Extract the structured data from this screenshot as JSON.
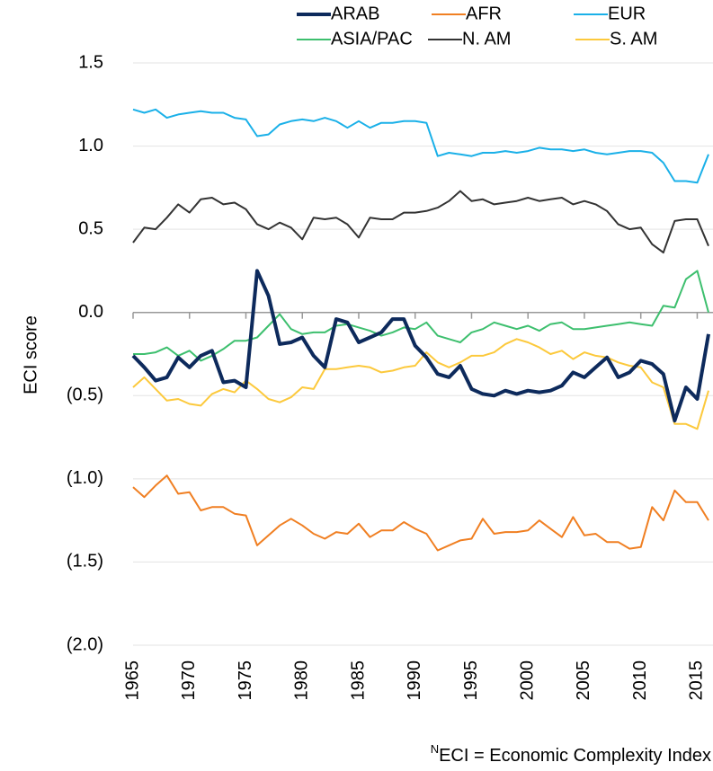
{
  "chart_data": {
    "type": "line",
    "y_label": "ECI score",
    "footnote_superscript": "N",
    "footnote": "ECI = Economic Complexity Index",
    "x": [
      1965,
      1966,
      1967,
      1968,
      1969,
      1970,
      1971,
      1972,
      1973,
      1974,
      1975,
      1976,
      1977,
      1978,
      1979,
      1980,
      1981,
      1982,
      1983,
      1984,
      1985,
      1986,
      1987,
      1988,
      1989,
      1990,
      1991,
      1992,
      1993,
      1994,
      1995,
      1996,
      1997,
      1998,
      1999,
      2000,
      2001,
      2002,
      2003,
      2004,
      2005,
      2006,
      2007,
      2008,
      2009,
      2010,
      2011,
      2012,
      2013,
      2014,
      2015,
      2016
    ],
    "xlim": [
      1965,
      2016
    ],
    "xticks": [
      1965,
      1970,
      1975,
      1980,
      1985,
      1990,
      1995,
      2000,
      2005,
      2010,
      2015
    ],
    "ylim": [
      -2,
      1.5
    ],
    "yticks": [
      {
        "value": -2,
        "label": "(2.0)"
      },
      {
        "value": -1.5,
        "label": "(1.5)"
      },
      {
        "value": -1,
        "label": "(1.0)"
      },
      {
        "value": -0.5,
        "label": "(0.5)"
      },
      {
        "value": 0,
        "label": "0.0"
      },
      0.5,
      {
        "value": 1,
        "label": "1.0"
      },
      1.5
    ],
    "grid": true,
    "legend": "top",
    "series": [
      {
        "name": "ARAB",
        "color": "#0d2a5c",
        "values": [
          -0.26,
          -0.33,
          -0.41,
          -0.39,
          -0.27,
          -0.33,
          -0.26,
          -0.23,
          -0.42,
          -0.41,
          -0.45,
          0.25,
          0.1,
          -0.19,
          -0.18,
          -0.15,
          -0.26,
          -0.33,
          -0.04,
          -0.06,
          -0.18,
          -0.15,
          -0.12,
          -0.04,
          -0.04,
          -0.2,
          -0.27,
          -0.37,
          -0.39,
          -0.32,
          -0.46,
          -0.49,
          -0.5,
          -0.47,
          -0.49,
          -0.47,
          -0.48,
          -0.47,
          -0.44,
          -0.36,
          -0.39,
          -0.33,
          -0.27,
          -0.39,
          -0.36,
          -0.29,
          -0.31,
          -0.37,
          -0.65,
          -0.45,
          -0.52,
          -0.13
        ]
      },
      {
        "name": "AFR",
        "color": "#f07f22",
        "values": [
          -1.05,
          -1.11,
          -1.04,
          -0.98,
          -1.09,
          -1.08,
          -1.19,
          -1.17,
          -1.17,
          -1.21,
          -1.22,
          -1.4,
          -1.34,
          -1.28,
          -1.24,
          -1.28,
          -1.33,
          -1.36,
          -1.32,
          -1.33,
          -1.27,
          -1.35,
          -1.31,
          -1.31,
          -1.26,
          -1.3,
          -1.33,
          -1.43,
          -1.4,
          -1.37,
          -1.36,
          -1.24,
          -1.33,
          -1.32,
          -1.32,
          -1.31,
          -1.25,
          -1.3,
          -1.35,
          -1.23,
          -1.34,
          -1.33,
          -1.38,
          -1.38,
          -1.42,
          -1.41,
          -1.17,
          -1.25,
          -1.07,
          -1.14,
          -1.14,
          -1.25
        ]
      },
      {
        "name": "EUR",
        "color": "#1ab0e8",
        "values": [
          1.22,
          1.2,
          1.22,
          1.17,
          1.19,
          1.2,
          1.21,
          1.2,
          1.2,
          1.17,
          1.16,
          1.06,
          1.07,
          1.13,
          1.15,
          1.16,
          1.15,
          1.17,
          1.15,
          1.11,
          1.15,
          1.11,
          1.14,
          1.14,
          1.15,
          1.15,
          1.14,
          0.94,
          0.96,
          0.95,
          0.94,
          0.96,
          0.96,
          0.97,
          0.96,
          0.97,
          0.99,
          0.98,
          0.98,
          0.97,
          0.98,
          0.96,
          0.95,
          0.96,
          0.97,
          0.97,
          0.96,
          0.9,
          0.79,
          0.79,
          0.78,
          0.95
        ]
      },
      {
        "name": "ASIA/PAC",
        "color": "#3dbf6e",
        "values": [
          -0.25,
          -0.25,
          -0.24,
          -0.21,
          -0.26,
          -0.23,
          -0.29,
          -0.26,
          -0.22,
          -0.17,
          -0.17,
          -0.15,
          -0.08,
          -0.01,
          -0.1,
          -0.13,
          -0.12,
          -0.12,
          -0.08,
          -0.07,
          -0.09,
          -0.11,
          -0.14,
          -0.12,
          -0.09,
          -0.1,
          -0.06,
          -0.14,
          -0.16,
          -0.18,
          -0.12,
          -0.1,
          -0.06,
          -0.08,
          -0.1,
          -0.08,
          -0.11,
          -0.07,
          -0.06,
          -0.1,
          -0.1,
          -0.09,
          -0.08,
          -0.07,
          -0.06,
          -0.07,
          -0.08,
          0.04,
          0.03,
          0.2,
          0.25,
          0.0
        ]
      },
      {
        "name": "N. AM",
        "color": "#333333",
        "values": [
          0.42,
          0.51,
          0.5,
          0.57,
          0.65,
          0.6,
          0.68,
          0.69,
          0.65,
          0.66,
          0.62,
          0.53,
          0.5,
          0.54,
          0.51,
          0.44,
          0.57,
          0.56,
          0.57,
          0.53,
          0.45,
          0.57,
          0.56,
          0.56,
          0.6,
          0.6,
          0.61,
          0.63,
          0.67,
          0.73,
          0.67,
          0.68,
          0.65,
          0.66,
          0.67,
          0.69,
          0.67,
          0.68,
          0.69,
          0.65,
          0.67,
          0.65,
          0.61,
          0.53,
          0.5,
          0.51,
          0.41,
          0.36,
          0.55,
          0.56,
          0.56,
          0.4
        ]
      },
      {
        "name": "S. AM",
        "color": "#fcc93c",
        "values": [
          -0.45,
          -0.39,
          -0.46,
          -0.53,
          -0.52,
          -0.55,
          -0.56,
          -0.49,
          -0.46,
          -0.48,
          -0.41,
          -0.46,
          -0.52,
          -0.54,
          -0.51,
          -0.45,
          -0.46,
          -0.34,
          -0.34,
          -0.33,
          -0.32,
          -0.33,
          -0.36,
          -0.35,
          -0.33,
          -0.32,
          -0.24,
          -0.3,
          -0.33,
          -0.3,
          -0.26,
          -0.26,
          -0.24,
          -0.19,
          -0.16,
          -0.18,
          -0.21,
          -0.25,
          -0.23,
          -0.28,
          -0.24,
          -0.26,
          -0.27,
          -0.3,
          -0.32,
          -0.33,
          -0.42,
          -0.45,
          -0.67,
          -0.67,
          -0.7,
          -0.47
        ]
      }
    ]
  }
}
